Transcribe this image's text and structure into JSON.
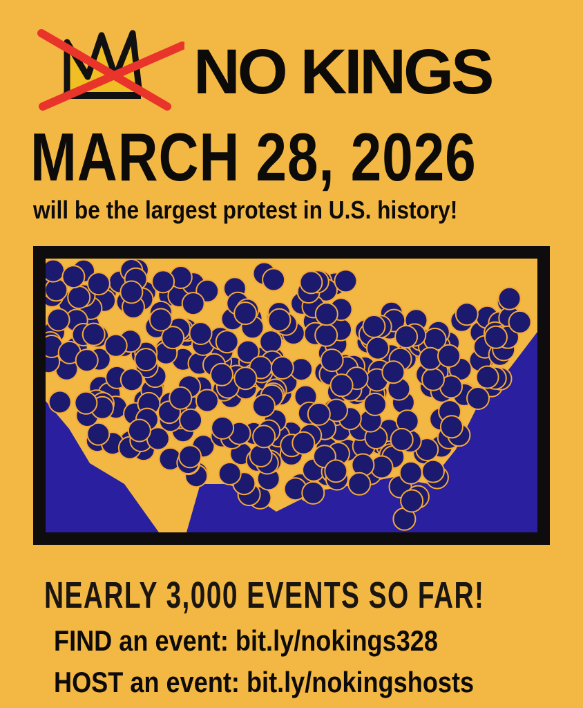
{
  "header": {
    "brand": "NO KINGS",
    "logo_icon": "crossed-out-crown-icon",
    "date": "MARCH 28, 2026",
    "tagline": "will be the largest protest in U.S. history!"
  },
  "map": {
    "description_icon": "us-map-event-dots",
    "colors": {
      "ocean": "#2a1f9e",
      "land": "#f3b843",
      "dot": "#1c1a6e",
      "dot_outline": "#f3a93a",
      "frame": "#0e0c0c"
    }
  },
  "footer": {
    "count": "NEARLY 3,000 EVENTS SO FAR!",
    "find_line": "FIND an event: bit.ly/nokings328",
    "host_line": "HOST an event: bit.ly/nokingshosts"
  },
  "colors": {
    "background": "#f3b843",
    "text": "#0d0b0a",
    "cross": "#e8342a"
  }
}
